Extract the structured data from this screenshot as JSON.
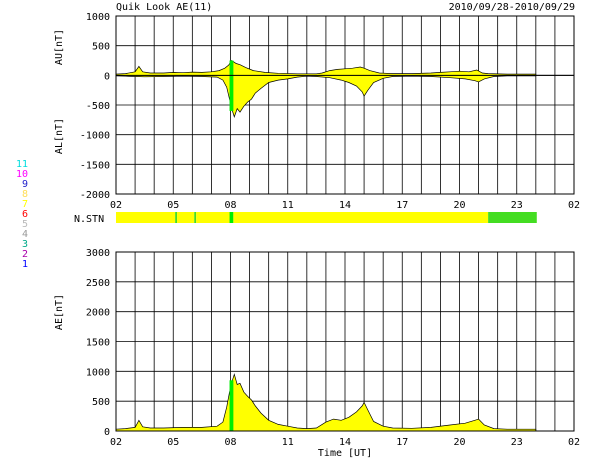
{
  "header": {
    "title": "Quik Look AE(11)",
    "date_range": "2010/09/28-2010/09/29"
  },
  "colors": {
    "fill": "#ffff00",
    "highlight": "#00ee00",
    "stn_low": "#44dd22"
  },
  "station_legend": [
    {
      "label": "11",
      "color": "#00dddd"
    },
    {
      "label": "10",
      "color": "#ff00ff"
    },
    {
      "label": "9",
      "color": "#2222cc"
    },
    {
      "label": "8",
      "color": "#ffdd55"
    },
    {
      "label": "7",
      "color": "#ffff00"
    },
    {
      "label": "6",
      "color": "#ff0000"
    },
    {
      "label": "5",
      "color": "#bbbbbb"
    },
    {
      "label": "4",
      "color": "#999999"
    },
    {
      "label": "3",
      "color": "#00aa88"
    },
    {
      "label": "2",
      "color": "#aa00aa"
    },
    {
      "label": "1",
      "color": "#0000ff"
    }
  ],
  "chart_data": [
    {
      "type": "area",
      "ylabel_upper": "AU[nT]",
      "ylabel_lower": "AL[nT]",
      "ylim": [
        -2000,
        1000
      ],
      "yticks": [
        "1000",
        "500",
        "0",
        "-500",
        "-1000",
        "-1500",
        "-2000"
      ],
      "xlim": [
        2,
        26
      ],
      "xticks": [
        "02",
        "05",
        "08",
        "11",
        "14",
        "17",
        "20",
        "23",
        "02"
      ],
      "grid": true,
      "series": [
        {
          "values_au": [
            [
              2.0,
              20
            ],
            [
              2.5,
              30
            ],
            [
              3.0,
              60
            ],
            [
              3.2,
              150
            ],
            [
              3.4,
              60
            ],
            [
              3.8,
              40
            ],
            [
              4.5,
              40
            ],
            [
              5.0,
              50
            ],
            [
              5.5,
              45
            ],
            [
              6.0,
              55
            ],
            [
              6.5,
              50
            ],
            [
              7.0,
              60
            ],
            [
              7.4,
              80
            ],
            [
              7.7,
              120
            ],
            [
              7.9,
              170
            ],
            [
              8.05,
              250
            ],
            [
              8.15,
              230
            ],
            [
              8.3,
              200
            ],
            [
              8.5,
              180
            ],
            [
              8.8,
              130
            ],
            [
              9.2,
              80
            ],
            [
              9.8,
              50
            ],
            [
              10.5,
              35
            ],
            [
              11.5,
              25
            ],
            [
              12.5,
              25
            ],
            [
              12.8,
              40
            ],
            [
              13.2,
              80
            ],
            [
              13.6,
              100
            ],
            [
              14.0,
              110
            ],
            [
              14.4,
              120
            ],
            [
              14.8,
              140
            ],
            [
              15.0,
              120
            ],
            [
              15.3,
              80
            ],
            [
              15.8,
              40
            ],
            [
              16.5,
              30
            ],
            [
              17.5,
              30
            ],
            [
              18.5,
              40
            ],
            [
              19.0,
              50
            ],
            [
              19.5,
              60
            ],
            [
              20.0,
              70
            ],
            [
              20.5,
              60
            ],
            [
              20.9,
              90
            ],
            [
              21.2,
              40
            ],
            [
              21.5,
              30
            ],
            [
              22.5,
              20
            ],
            [
              23.5,
              20
            ],
            [
              24.0,
              20
            ]
          ],
          "values_al": [
            [
              2.0,
              -10
            ],
            [
              2.5,
              -15
            ],
            [
              3.0,
              -20
            ],
            [
              3.5,
              -25
            ],
            [
              4.5,
              -20
            ],
            [
              5.5,
              -15
            ],
            [
              6.5,
              -20
            ],
            [
              7.3,
              -30
            ],
            [
              7.6,
              -80
            ],
            [
              7.8,
              -200
            ],
            [
              7.95,
              -400
            ],
            [
              8.1,
              -600
            ],
            [
              8.2,
              -700
            ],
            [
              8.35,
              -560
            ],
            [
              8.5,
              -620
            ],
            [
              8.7,
              -520
            ],
            [
              8.9,
              -450
            ],
            [
              9.1,
              -400
            ],
            [
              9.3,
              -300
            ],
            [
              9.6,
              -220
            ],
            [
              10.0,
              -120
            ],
            [
              10.5,
              -80
            ],
            [
              11.0,
              -60
            ],
            [
              11.5,
              -30
            ],
            [
              12.0,
              -15
            ],
            [
              12.5,
              -20
            ],
            [
              13.2,
              -40
            ],
            [
              13.8,
              -80
            ],
            [
              14.2,
              -120
            ],
            [
              14.6,
              -180
            ],
            [
              14.9,
              -280
            ],
            [
              15.0,
              -350
            ],
            [
              15.2,
              -250
            ],
            [
              15.5,
              -120
            ],
            [
              16.0,
              -50
            ],
            [
              16.5,
              -20
            ],
            [
              17.5,
              -15
            ],
            [
              18.5,
              -20
            ],
            [
              19.5,
              -40
            ],
            [
              20.3,
              -60
            ],
            [
              20.8,
              -90
            ],
            [
              21.0,
              -110
            ],
            [
              21.3,
              -60
            ],
            [
              21.8,
              -20
            ],
            [
              22.5,
              -10
            ],
            [
              23.5,
              -10
            ],
            [
              24.0,
              -10
            ]
          ],
          "highlight_x": [
            7.95,
            8.15
          ]
        }
      ]
    },
    {
      "type": "heatmap",
      "label": "N.STN",
      "xlim": [
        2,
        26
      ],
      "segments": [
        {
          "x": [
            2.0,
            5.1
          ],
          "color": "#ffff00"
        },
        {
          "x": [
            5.1,
            5.2
          ],
          "color": "#44dd22"
        },
        {
          "x": [
            5.2,
            6.1
          ],
          "color": "#ffff00"
        },
        {
          "x": [
            6.1,
            6.2
          ],
          "color": "#44dd22"
        },
        {
          "x": [
            6.2,
            7.95
          ],
          "color": "#ffff00"
        },
        {
          "x": [
            7.95,
            8.15
          ],
          "color": "#00ee00"
        },
        {
          "x": [
            8.15,
            21.5
          ],
          "color": "#ffff00"
        },
        {
          "x": [
            21.5,
            24.05
          ],
          "color": "#44dd22"
        }
      ]
    },
    {
      "type": "area",
      "ylabel": "AE[nT]",
      "xlabel": "Time [UT]",
      "ylim": [
        0,
        3000
      ],
      "yticks": [
        "3000",
        "2500",
        "2000",
        "1500",
        "1000",
        "500",
        "0"
      ],
      "xlim": [
        2,
        26
      ],
      "xticks": [
        "02",
        "05",
        "08",
        "11",
        "14",
        "17",
        "20",
        "23",
        "02"
      ],
      "grid": true,
      "series": [
        {
          "values_ae": [
            [
              2.0,
              30
            ],
            [
              2.5,
              40
            ],
            [
              3.0,
              60
            ],
            [
              3.2,
              180
            ],
            [
              3.4,
              70
            ],
            [
              3.8,
              50
            ],
            [
              4.5,
              50
            ],
            [
              5.5,
              60
            ],
            [
              6.5,
              60
            ],
            [
              7.3,
              80
            ],
            [
              7.6,
              150
            ],
            [
              7.8,
              400
            ],
            [
              7.95,
              650
            ],
            [
              8.1,
              850
            ],
            [
              8.2,
              950
            ],
            [
              8.35,
              780
            ],
            [
              8.5,
              800
            ],
            [
              8.7,
              650
            ],
            [
              8.9,
              580
            ],
            [
              9.1,
              520
            ],
            [
              9.3,
              420
            ],
            [
              9.6,
              300
            ],
            [
              10.0,
              180
            ],
            [
              10.5,
              110
            ],
            [
              11.0,
              80
            ],
            [
              11.5,
              50
            ],
            [
              12.0,
              40
            ],
            [
              12.5,
              50
            ],
            [
              13.0,
              150
            ],
            [
              13.4,
              200
            ],
            [
              13.8,
              180
            ],
            [
              14.2,
              230
            ],
            [
              14.6,
              320
            ],
            [
              14.9,
              420
            ],
            [
              15.0,
              480
            ],
            [
              15.2,
              350
            ],
            [
              15.5,
              160
            ],
            [
              16.0,
              80
            ],
            [
              16.5,
              50
            ],
            [
              17.5,
              45
            ],
            [
              18.5,
              60
            ],
            [
              19.5,
              100
            ],
            [
              20.3,
              130
            ],
            [
              20.8,
              180
            ],
            [
              21.0,
              200
            ],
            [
              21.3,
              100
            ],
            [
              21.8,
              40
            ],
            [
              22.5,
              30
            ],
            [
              23.5,
              30
            ],
            [
              24.0,
              30
            ]
          ],
          "highlight_x": [
            7.95,
            8.15
          ]
        }
      ]
    }
  ]
}
